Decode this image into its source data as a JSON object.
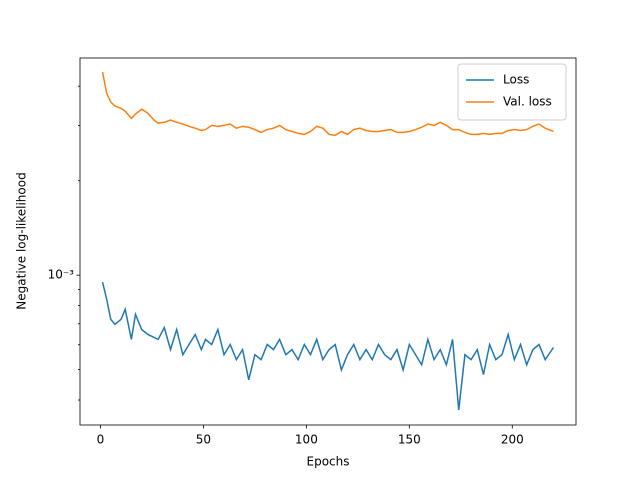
{
  "chart_data": {
    "type": "line",
    "xlabel": "Epochs",
    "ylabel": "Negative log-likelihood",
    "x": [
      1,
      3,
      5,
      7,
      10,
      12,
      15,
      17,
      20,
      23,
      26,
      28,
      31,
      34,
      37,
      40,
      43,
      46,
      49,
      51,
      54,
      57,
      60,
      63,
      66,
      69,
      72,
      75,
      78,
      81,
      84,
      87,
      90,
      93,
      96,
      99,
      102,
      105,
      108,
      111,
      114,
      117,
      120,
      123,
      126,
      129,
      132,
      135,
      138,
      141,
      144,
      147,
      150,
      153,
      156,
      159,
      162,
      165,
      168,
      171,
      174,
      177,
      180,
      183,
      186,
      189,
      192,
      195,
      198,
      201,
      204,
      207,
      210,
      213,
      216,
      220
    ],
    "series": [
      {
        "name": "Loss",
        "color": "#1f77b4",
        "values": [
          0.00095,
          0.000838,
          0.000723,
          0.000697,
          0.000723,
          0.000778,
          0.000624,
          0.00075,
          0.000671,
          0.000647,
          0.000633,
          0.000624,
          0.000681,
          0.000579,
          0.000671,
          0.000558,
          0.000601,
          0.000647,
          0.000579,
          0.000624,
          0.000601,
          0.000671,
          0.000558,
          0.000601,
          0.000538,
          0.000579,
          0.000464,
          0.000558,
          0.000538,
          0.000601,
          0.000579,
          0.000624,
          0.000558,
          0.000579,
          0.000538,
          0.000601,
          0.000558,
          0.000624,
          0.000538,
          0.000579,
          0.000601,
          0.000499,
          0.000558,
          0.000601,
          0.000538,
          0.000579,
          0.000538,
          0.000601,
          0.000558,
          0.000538,
          0.000579,
          0.000499,
          0.000601,
          0.000558,
          0.000518,
          0.000624,
          0.000538,
          0.000579,
          0.000518,
          0.000624,
          0.000372,
          0.000558,
          0.000538,
          0.000579,
          0.000482,
          0.000601,
          0.000538,
          0.000558,
          0.000647,
          0.000538,
          0.000601,
          0.000518,
          0.000579,
          0.000601,
          0.000538,
          0.000588
        ]
      },
      {
        "name": "Val. loss",
        "color": "#ff7f0e",
        "values": [
          0.00444,
          0.0038,
          0.00356,
          0.00346,
          0.0034,
          0.00333,
          0.00316,
          0.00326,
          0.00338,
          0.00328,
          0.00312,
          0.00305,
          0.00307,
          0.00312,
          0.00307,
          0.00303,
          0.00298,
          0.00294,
          0.00289,
          0.00291,
          0.003,
          0.00298,
          0.003,
          0.00303,
          0.00294,
          0.00298,
          0.00296,
          0.00291,
          0.00285,
          0.00291,
          0.00294,
          0.003,
          0.00291,
          0.00287,
          0.00283,
          0.00281,
          0.00287,
          0.00298,
          0.00294,
          0.00281,
          0.00279,
          0.00287,
          0.00281,
          0.00291,
          0.00294,
          0.00289,
          0.00287,
          0.00287,
          0.00289,
          0.00291,
          0.00285,
          0.00285,
          0.00287,
          0.00291,
          0.00296,
          0.00303,
          0.003,
          0.00307,
          0.003,
          0.00291,
          0.00291,
          0.00285,
          0.00281,
          0.00281,
          0.00283,
          0.00281,
          0.00283,
          0.00283,
          0.00289,
          0.00291,
          0.00289,
          0.00291,
          0.00298,
          0.00303,
          0.00294,
          0.00287
        ]
      }
    ],
    "xlim": [
      -9.95,
      230.95
    ],
    "xticks": [
      0,
      50,
      100,
      150,
      200
    ],
    "ylim": [
      0.000333,
      0.00492
    ],
    "log_y": true,
    "yticks": [
      {
        "value": 0.001,
        "label": "10⁻³"
      }
    ],
    "minor_yticks": [
      0.0004,
      0.0005,
      0.0006,
      0.0007,
      0.0008,
      0.0009,
      0.002,
      0.003,
      0.004
    ],
    "legend": "upper right"
  }
}
